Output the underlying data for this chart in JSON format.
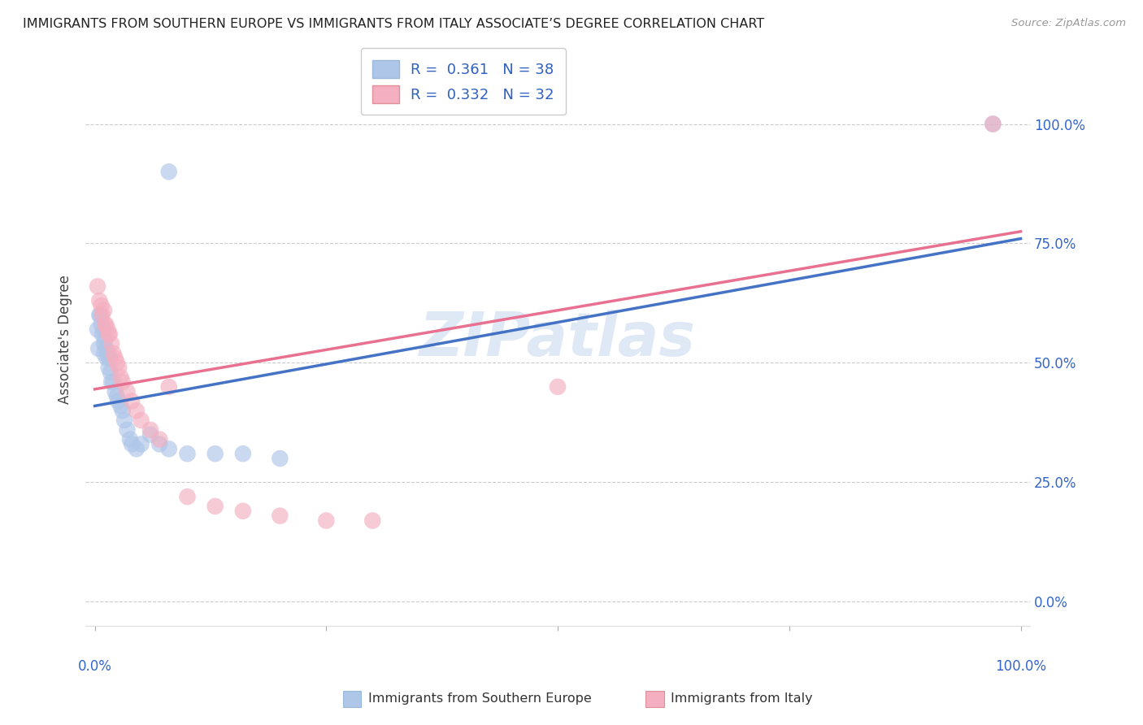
{
  "title": "IMMIGRANTS FROM SOUTHERN EUROPE VS IMMIGRANTS FROM ITALY ASSOCIATE’S DEGREE CORRELATION CHART",
  "source": "Source: ZipAtlas.com",
  "ylabel": "Associate's Degree",
  "R_blue": 0.361,
  "N_blue": 38,
  "R_pink": 0.332,
  "N_pink": 32,
  "color_blue": "#aec6e8",
  "color_pink": "#f4afc0",
  "color_blue_line": "#4472c4",
  "color_pink_line": "#e87090",
  "color_title": "#222222",
  "color_source": "#999999",
  "color_legend_text": "#3060c0",
  "color_axis_blue": "#3366cc",
  "watermark": "ZIPatlas",
  "blue_points": [
    [
      0.3,
      57.0
    ],
    [
      0.4,
      53.0
    ],
    [
      0.5,
      60.0
    ],
    [
      0.6,
      60.0
    ],
    [
      0.7,
      58.0
    ],
    [
      0.8,
      56.0
    ],
    [
      1.0,
      57.0
    ],
    [
      1.0,
      54.0
    ],
    [
      1.0,
      52.0
    ],
    [
      1.1,
      55.0
    ],
    [
      1.2,
      53.0
    ],
    [
      1.3,
      51.0
    ],
    [
      1.5,
      52.0
    ],
    [
      1.5,
      49.0
    ],
    [
      1.6,
      51.0
    ],
    [
      1.7,
      48.0
    ],
    [
      1.8,
      46.0
    ],
    [
      2.0,
      46.0
    ],
    [
      2.2,
      44.0
    ],
    [
      2.4,
      43.0
    ],
    [
      2.5,
      42.0
    ],
    [
      2.8,
      41.0
    ],
    [
      3.0,
      40.0
    ],
    [
      3.2,
      38.0
    ],
    [
      3.5,
      36.0
    ],
    [
      3.8,
      34.0
    ],
    [
      4.0,
      33.0
    ],
    [
      4.5,
      32.0
    ],
    [
      5.0,
      33.0
    ],
    [
      6.0,
      35.0
    ],
    [
      7.0,
      33.0
    ],
    [
      8.0,
      32.0
    ],
    [
      10.0,
      31.0
    ],
    [
      13.0,
      31.0
    ],
    [
      16.0,
      31.0
    ],
    [
      20.0,
      30.0
    ],
    [
      8.0,
      90.0
    ],
    [
      97.0,
      100.0
    ]
  ],
  "pink_points": [
    [
      0.3,
      66.0
    ],
    [
      0.5,
      63.0
    ],
    [
      0.7,
      62.0
    ],
    [
      0.8,
      60.0
    ],
    [
      1.0,
      61.0
    ],
    [
      1.1,
      58.0
    ],
    [
      1.2,
      58.0
    ],
    [
      1.4,
      57.0
    ],
    [
      1.5,
      56.0
    ],
    [
      1.6,
      56.0
    ],
    [
      1.8,
      54.0
    ],
    [
      2.0,
      52.0
    ],
    [
      2.2,
      51.0
    ],
    [
      2.4,
      50.0
    ],
    [
      2.6,
      49.0
    ],
    [
      2.8,
      47.0
    ],
    [
      3.0,
      46.0
    ],
    [
      3.5,
      44.0
    ],
    [
      4.0,
      42.0
    ],
    [
      4.5,
      40.0
    ],
    [
      5.0,
      38.0
    ],
    [
      6.0,
      36.0
    ],
    [
      7.0,
      34.0
    ],
    [
      8.0,
      45.0
    ],
    [
      10.0,
      22.0
    ],
    [
      13.0,
      20.0
    ],
    [
      16.0,
      19.0
    ],
    [
      20.0,
      18.0
    ],
    [
      25.0,
      17.0
    ],
    [
      30.0,
      17.0
    ],
    [
      50.0,
      45.0
    ],
    [
      97.0,
      100.0
    ]
  ],
  "xlim": [
    0,
    100
  ],
  "ylim": [
    0,
    100
  ],
  "blue_intercept": 41.0,
  "blue_slope": 0.35,
  "pink_intercept": 44.5,
  "pink_slope": 0.33,
  "background_color": "#ffffff",
  "grid_color": "#cccccc",
  "yticks": [
    0,
    25,
    50,
    75,
    100
  ],
  "ytick_labels": [
    "0.0%",
    "25.0%",
    "50.0%",
    "75.0%",
    "100.0%"
  ],
  "xtick_labels_show": [
    "0.0%",
    "100.0%"
  ]
}
